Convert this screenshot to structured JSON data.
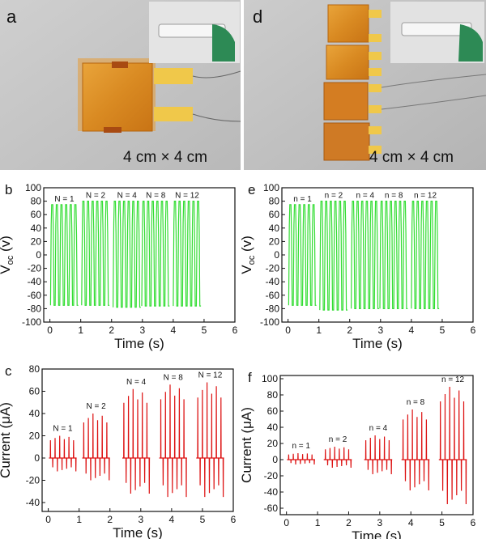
{
  "panels": {
    "a": {
      "letter": "a",
      "caption": "4 cm × 4 cm"
    },
    "d": {
      "letter": "d",
      "caption": "4 cm × 4 cm"
    }
  },
  "chart_data": [
    {
      "panel": "b",
      "type": "line",
      "xlabel": "Time (s)",
      "ylabel": "V",
      "ylabel_sub": "oc",
      "ylabel_unit": " (v)",
      "xlim": [
        -0.2,
        6
      ],
      "ylim": [
        -100,
        100
      ],
      "xticks": [
        0,
        1,
        2,
        3,
        4,
        5,
        6
      ],
      "yticks": [
        -100,
        -80,
        -60,
        -40,
        -20,
        0,
        20,
        40,
        60,
        80,
        100
      ],
      "color": "#33dd33",
      "groups": [
        {
          "label": "N = 1",
          "start": 0.02,
          "end": 0.92,
          "peaks": 6,
          "max": 75,
          "min": -75
        },
        {
          "label": "N = 2",
          "start": 1.03,
          "end": 1.93,
          "peaks": 6,
          "max": 80,
          "min": -75
        },
        {
          "label": "N = 4",
          "start": 2.05,
          "end": 2.95,
          "peaks": 6,
          "max": 80,
          "min": -78
        },
        {
          "label": "N = 8",
          "start": 2.98,
          "end": 3.88,
          "peaks": 6,
          "max": 80,
          "min": -76
        },
        {
          "label": "N = 12",
          "start": 4.0,
          "end": 4.9,
          "peaks": 6,
          "max": 80,
          "min": -76
        }
      ]
    },
    {
      "panel": "c",
      "type": "line",
      "xlabel": "Time (s)",
      "ylabel": "Current (μA)",
      "xlim": [
        -0.2,
        6
      ],
      "ylim": [
        -48,
        80
      ],
      "xticks": [
        0,
        1,
        2,
        3,
        4,
        5,
        6
      ],
      "yticks": [
        -40,
        -20,
        0,
        20,
        40,
        60,
        80
      ],
      "color": "#dd1111",
      "groups": [
        {
          "label": "N = 1",
          "start": 0.02,
          "end": 0.92,
          "peaks": 6,
          "max": 20,
          "min": -12
        },
        {
          "label": "N = 2",
          "start": 1.1,
          "end": 2.0,
          "peaks": 6,
          "max": 40,
          "min": -20
        },
        {
          "label": "N = 4",
          "start": 2.4,
          "end": 3.3,
          "peaks": 6,
          "max": 62,
          "min": -32
        },
        {
          "label": "N = 8",
          "start": 3.6,
          "end": 4.5,
          "peaks": 6,
          "max": 66,
          "min": -35
        },
        {
          "label": "N = 12",
          "start": 4.8,
          "end": 5.7,
          "peaks": 6,
          "max": 68,
          "min": -35
        }
      ]
    },
    {
      "panel": "e",
      "type": "line",
      "xlabel": "Time (s)",
      "ylabel": "V",
      "ylabel_sub": "oc",
      "ylabel_unit": " (v)",
      "xlim": [
        -0.2,
        6
      ],
      "ylim": [
        -100,
        100
      ],
      "xticks": [
        0,
        1,
        2,
        3,
        4,
        5,
        6
      ],
      "yticks": [
        -100,
        -80,
        -60,
        -40,
        -20,
        0,
        20,
        40,
        60,
        80,
        100
      ],
      "color": "#33dd33",
      "groups": [
        {
          "label": "n = 1",
          "start": 0.02,
          "end": 0.92,
          "peaks": 6,
          "max": 75,
          "min": -75
        },
        {
          "label": "n = 2",
          "start": 1.03,
          "end": 1.93,
          "peaks": 6,
          "max": 80,
          "min": -82
        },
        {
          "label": "n = 4",
          "start": 2.05,
          "end": 2.95,
          "peaks": 6,
          "max": 80,
          "min": -80
        },
        {
          "label": "n = 8",
          "start": 2.98,
          "end": 3.88,
          "peaks": 6,
          "max": 80,
          "min": -80
        },
        {
          "label": "n = 12",
          "start": 4.0,
          "end": 4.9,
          "peaks": 6,
          "max": 80,
          "min": -80
        }
      ]
    },
    {
      "panel": "f",
      "type": "line",
      "xlabel": "Time (s)",
      "ylabel": "Current (μA)",
      "xlim": [
        -0.2,
        6
      ],
      "ylim": [
        -68,
        104
      ],
      "xticks": [
        0,
        1,
        2,
        3,
        4,
        5,
        6
      ],
      "yticks": [
        -60,
        -40,
        -20,
        0,
        20,
        40,
        60,
        80,
        100
      ],
      "color": "#dd1111",
      "groups": [
        {
          "label": "n = 1",
          "start": 0.02,
          "end": 0.92,
          "peaks": 6,
          "max": 8,
          "min": -6
        },
        {
          "label": "n = 2",
          "start": 1.2,
          "end": 2.1,
          "peaks": 6,
          "max": 16,
          "min": -10
        },
        {
          "label": "n = 4",
          "start": 2.5,
          "end": 3.4,
          "peaks": 6,
          "max": 30,
          "min": -18
        },
        {
          "label": "n = 8",
          "start": 3.7,
          "end": 4.6,
          "peaks": 6,
          "max": 62,
          "min": -38
        },
        {
          "label": "n = 12",
          "start": 4.9,
          "end": 5.8,
          "peaks": 6,
          "max": 90,
          "min": -55
        }
      ]
    }
  ]
}
